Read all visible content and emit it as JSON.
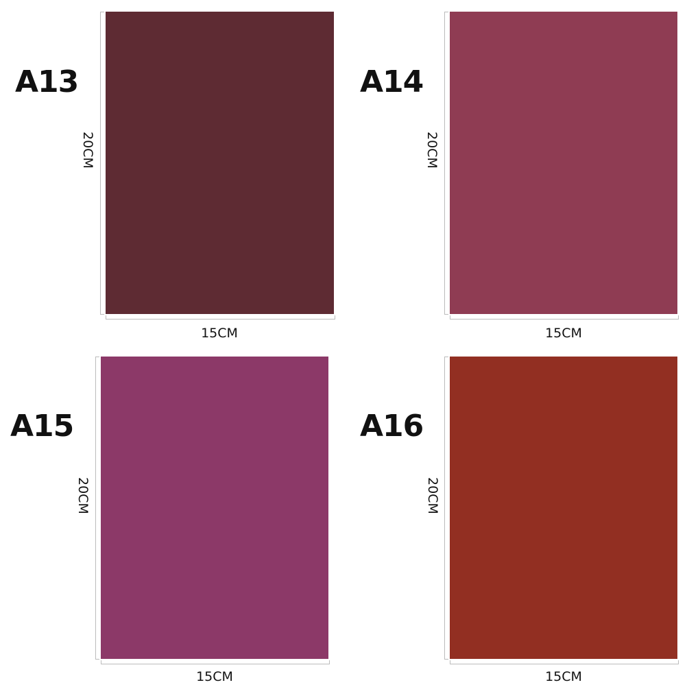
{
  "swatches": [
    {
      "code": "A13",
      "width": "15CM",
      "height": "20CM",
      "color": "#5e2b33"
    },
    {
      "code": "A14",
      "width": "15CM",
      "height": "20CM",
      "color": "#8f3c53"
    },
    {
      "code": "A15",
      "width": "15CM",
      "height": "20CM",
      "color": "#8c3968"
    },
    {
      "code": "A16",
      "width": "15CM",
      "height": "20CM",
      "color": "#922f22"
    }
  ]
}
